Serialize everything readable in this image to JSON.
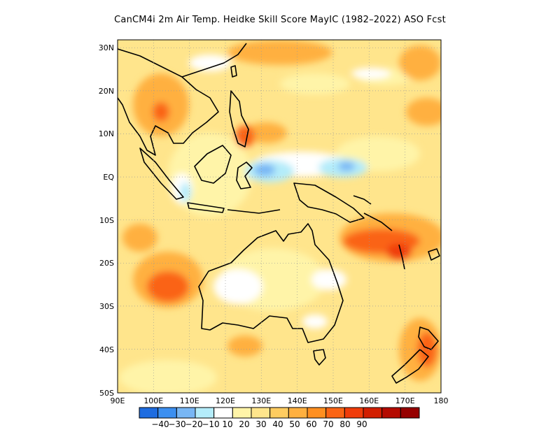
{
  "title": "CanCM4i  2m Air Temp. Heidke Skill Score MayIC (1982–2022) ASO Fcst",
  "map": {
    "lon_range": [
      90,
      180
    ],
    "lat_range": [
      -50,
      32
    ],
    "y_ticks": [
      {
        "lat": 30,
        "label": "30N"
      },
      {
        "lat": 20,
        "label": "20N"
      },
      {
        "lat": 10,
        "label": "10N"
      },
      {
        "lat": 0,
        "label": "EQ"
      },
      {
        "lat": -10,
        "label": "10S"
      },
      {
        "lat": -20,
        "label": "20S"
      },
      {
        "lat": -30,
        "label": "30S"
      },
      {
        "lat": -40,
        "label": "40S"
      },
      {
        "lat": -50,
        "label": "50S"
      }
    ],
    "x_ticks": [
      {
        "lon": 90,
        "label": "90E"
      },
      {
        "lon": 100,
        "label": "100E"
      },
      {
        "lon": 110,
        "label": "110E"
      },
      {
        "lon": 120,
        "label": "120E"
      },
      {
        "lon": 130,
        "label": "130E"
      },
      {
        "lon": 140,
        "label": "140E"
      },
      {
        "lon": 150,
        "label": "150E"
      },
      {
        "lon": 160,
        "label": "160E"
      },
      {
        "lon": 170,
        "label": "170E"
      },
      {
        "lon": 180,
        "label": "180"
      }
    ],
    "grid": "dotted"
  },
  "colorbar": {
    "colors": [
      "#1e6ce0",
      "#3c8ff0",
      "#78b6f4",
      "#b4ecfa",
      "#ffffff",
      "#fff4a8",
      "#ffe58c",
      "#ffcc60",
      "#ffb040",
      "#ff8f20",
      "#fa6414",
      "#f03c0a",
      "#d21e00",
      "#b40a00",
      "#960000"
    ],
    "labels": [
      "−40",
      "−30",
      "−20",
      "−10",
      "10",
      "20",
      "30",
      "40",
      "50",
      "60",
      "70",
      "80",
      "90"
    ]
  },
  "chart_data": {
    "type": "heatmap",
    "title": "CanCM4i  2m Air Temp. Heidke Skill Score MayIC (1982–2022) ASO Fcst",
    "x_range": [
      90,
      180
    ],
    "y_range": [
      -50,
      32
    ],
    "color_levels": [
      -40,
      -30,
      -20,
      -10,
      10,
      20,
      30,
      40,
      50,
      60,
      70,
      80,
      90
    ],
    "features": [
      {
        "region": "western Pacific near equator (125E-150E, 5S-5N)",
        "approx_value": -15
      },
      {
        "region": "Solomon Sea to Vanuatu band (150E-175E, 8S-20S)",
        "approx_value": 60
      },
      {
        "region": "Indian Ocean west of Australia (95E-110E, 18S-28S)",
        "approx_value": 55
      },
      {
        "region": "interior Australia (120E-140E, 20S-30S)",
        "approx_value": 10
      },
      {
        "region": "Philippines / South China Sea",
        "approx_value": 45
      },
      {
        "region": "New Zealand",
        "approx_value": 50
      }
    ]
  }
}
